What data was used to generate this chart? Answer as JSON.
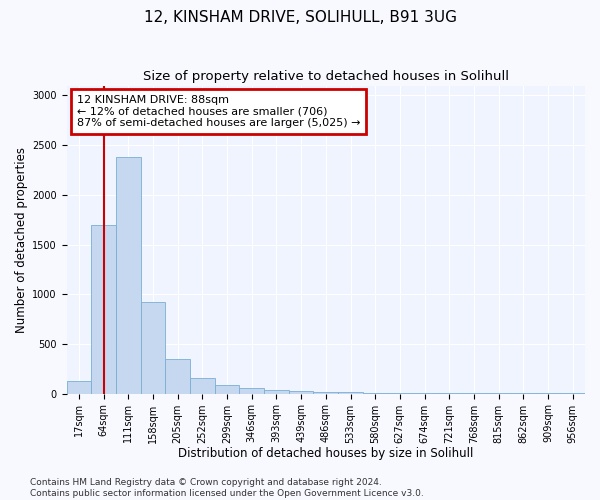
{
  "title": "12, KINSHAM DRIVE, SOLIHULL, B91 3UG",
  "subtitle": "Size of property relative to detached houses in Solihull",
  "xlabel": "Distribution of detached houses by size in Solihull",
  "ylabel": "Number of detached properties",
  "categories": [
    "17sqm",
    "64sqm",
    "111sqm",
    "158sqm",
    "205sqm",
    "252sqm",
    "299sqm",
    "346sqm",
    "393sqm",
    "439sqm",
    "486sqm",
    "533sqm",
    "580sqm",
    "627sqm",
    "674sqm",
    "721sqm",
    "768sqm",
    "815sqm",
    "862sqm",
    "909sqm",
    "956sqm"
  ],
  "values": [
    130,
    1700,
    2380,
    920,
    350,
    160,
    85,
    55,
    35,
    25,
    20,
    15,
    10,
    8,
    5,
    3,
    2,
    2,
    2,
    2,
    2
  ],
  "bar_color": "#c5d8f0",
  "bar_edgecolor": "#7aafd4",
  "annotation_text": "12 KINSHAM DRIVE: 88sqm\n← 12% of detached houses are smaller (706)\n87% of semi-detached houses are larger (5,025) →",
  "annotation_box_color": "#ffffff",
  "annotation_box_edgecolor": "#cc0000",
  "line_color": "#cc0000",
  "footer_text": "Contains HM Land Registry data © Crown copyright and database right 2024.\nContains public sector information licensed under the Open Government Licence v3.0.",
  "ylim": [
    0,
    3100
  ],
  "yticks": [
    0,
    500,
    1000,
    1500,
    2000,
    2500,
    3000
  ],
  "background_color": "#f8f8ff",
  "plot_bg_color": "#f0f4ff",
  "title_fontsize": 11,
  "subtitle_fontsize": 9.5,
  "axis_label_fontsize": 8.5,
  "tick_fontsize": 7,
  "footer_fontsize": 6.5,
  "annotation_fontsize": 8
}
